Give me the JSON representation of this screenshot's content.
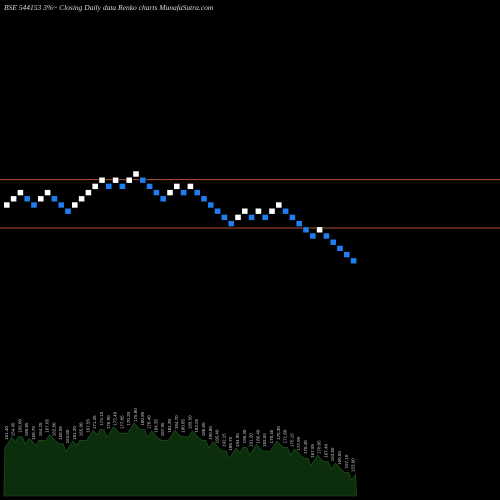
{
  "title": "BSE 544153 3%~  Closing Daily data  Renko  charts MunafaSutra.com",
  "colors": {
    "background": "#000000",
    "up_brick": "#ffffff",
    "down_brick": "#1e7ef0",
    "brick_border": "#000000",
    "resistance_line": "#b0502d",
    "volume_fill": "#0d2e0d",
    "volume_edge": "#1f5a1f",
    "label": "#c8c8c8"
  },
  "chart_data": {
    "type": "renko",
    "brick_size_percent": 3,
    "bricks": [
      {
        "direction": "up",
        "level": 0
      },
      {
        "direction": "up",
        "level": 1
      },
      {
        "direction": "up",
        "level": 2
      },
      {
        "direction": "down",
        "level": 1
      },
      {
        "direction": "down",
        "level": 0
      },
      {
        "direction": "up",
        "level": 1
      },
      {
        "direction": "up",
        "level": 2
      },
      {
        "direction": "down",
        "level": 1
      },
      {
        "direction": "down",
        "level": 0
      },
      {
        "direction": "down",
        "level": -1
      },
      {
        "direction": "up",
        "level": 0
      },
      {
        "direction": "up",
        "level": 1
      },
      {
        "direction": "up",
        "level": 2
      },
      {
        "direction": "up",
        "level": 3
      },
      {
        "direction": "up",
        "level": 4
      },
      {
        "direction": "down",
        "level": 3
      },
      {
        "direction": "up",
        "level": 4
      },
      {
        "direction": "down",
        "level": 3
      },
      {
        "direction": "up",
        "level": 4
      },
      {
        "direction": "up",
        "level": 5
      },
      {
        "direction": "down",
        "level": 4
      },
      {
        "direction": "down",
        "level": 3
      },
      {
        "direction": "down",
        "level": 2
      },
      {
        "direction": "down",
        "level": 1
      },
      {
        "direction": "up",
        "level": 2
      },
      {
        "direction": "up",
        "level": 3
      },
      {
        "direction": "down",
        "level": 2
      },
      {
        "direction": "up",
        "level": 3
      },
      {
        "direction": "down",
        "level": 2
      },
      {
        "direction": "down",
        "level": 1
      },
      {
        "direction": "down",
        "level": 0
      },
      {
        "direction": "down",
        "level": -1
      },
      {
        "direction": "down",
        "level": -2
      },
      {
        "direction": "down",
        "level": -3
      },
      {
        "direction": "up",
        "level": -2
      },
      {
        "direction": "up",
        "level": -1
      },
      {
        "direction": "down",
        "level": -2
      },
      {
        "direction": "up",
        "level": -1
      },
      {
        "direction": "down",
        "level": -2
      },
      {
        "direction": "up",
        "level": -1
      },
      {
        "direction": "up",
        "level": 0
      },
      {
        "direction": "down",
        "level": -1
      },
      {
        "direction": "down",
        "level": -2
      },
      {
        "direction": "down",
        "level": -3
      },
      {
        "direction": "down",
        "level": -4
      },
      {
        "direction": "down",
        "level": -5
      },
      {
        "direction": "up",
        "level": -4
      },
      {
        "direction": "down",
        "level": -5
      },
      {
        "direction": "down",
        "level": -6
      },
      {
        "direction": "down",
        "level": -7
      },
      {
        "direction": "down",
        "level": -8
      },
      {
        "direction": "down",
        "level": -9
      }
    ],
    "horizontal_lines": [
      {
        "kind": "resistance",
        "level": 4.1
      },
      {
        "kind": "support",
        "level": -3.7
      }
    ],
    "volume_labels": [
      "151.40",
      "154.45",
      "156.80",
      "160.65",
      "158.75",
      "164.25",
      "167.05",
      "162.80",
      "158.05",
      "163.00",
      "161.20",
      "165.90",
      "167.55",
      "171.35",
      "174.15",
      "176.90",
      "172.40",
      "177.05",
      "170.20",
      "175.80",
      "180.90",
      "178.40",
      "184.35",
      "187.95",
      "181.30",
      "184.70",
      "180.85",
      "189.50",
      "193.25",
      "186.60",
      "190.80",
      "195.40",
      "192.15",
      "188.75",
      "194.95",
      "198.30",
      "191.20",
      "186.40",
      "183.55",
      "178.45",
      "175.30",
      "171.60",
      "175.15",
      "172.90",
      "170.40",
      "167.95",
      "170.05",
      "167.40",
      "163.85",
      "160.50",
      "157.10",
      "153.90"
    ]
  }
}
